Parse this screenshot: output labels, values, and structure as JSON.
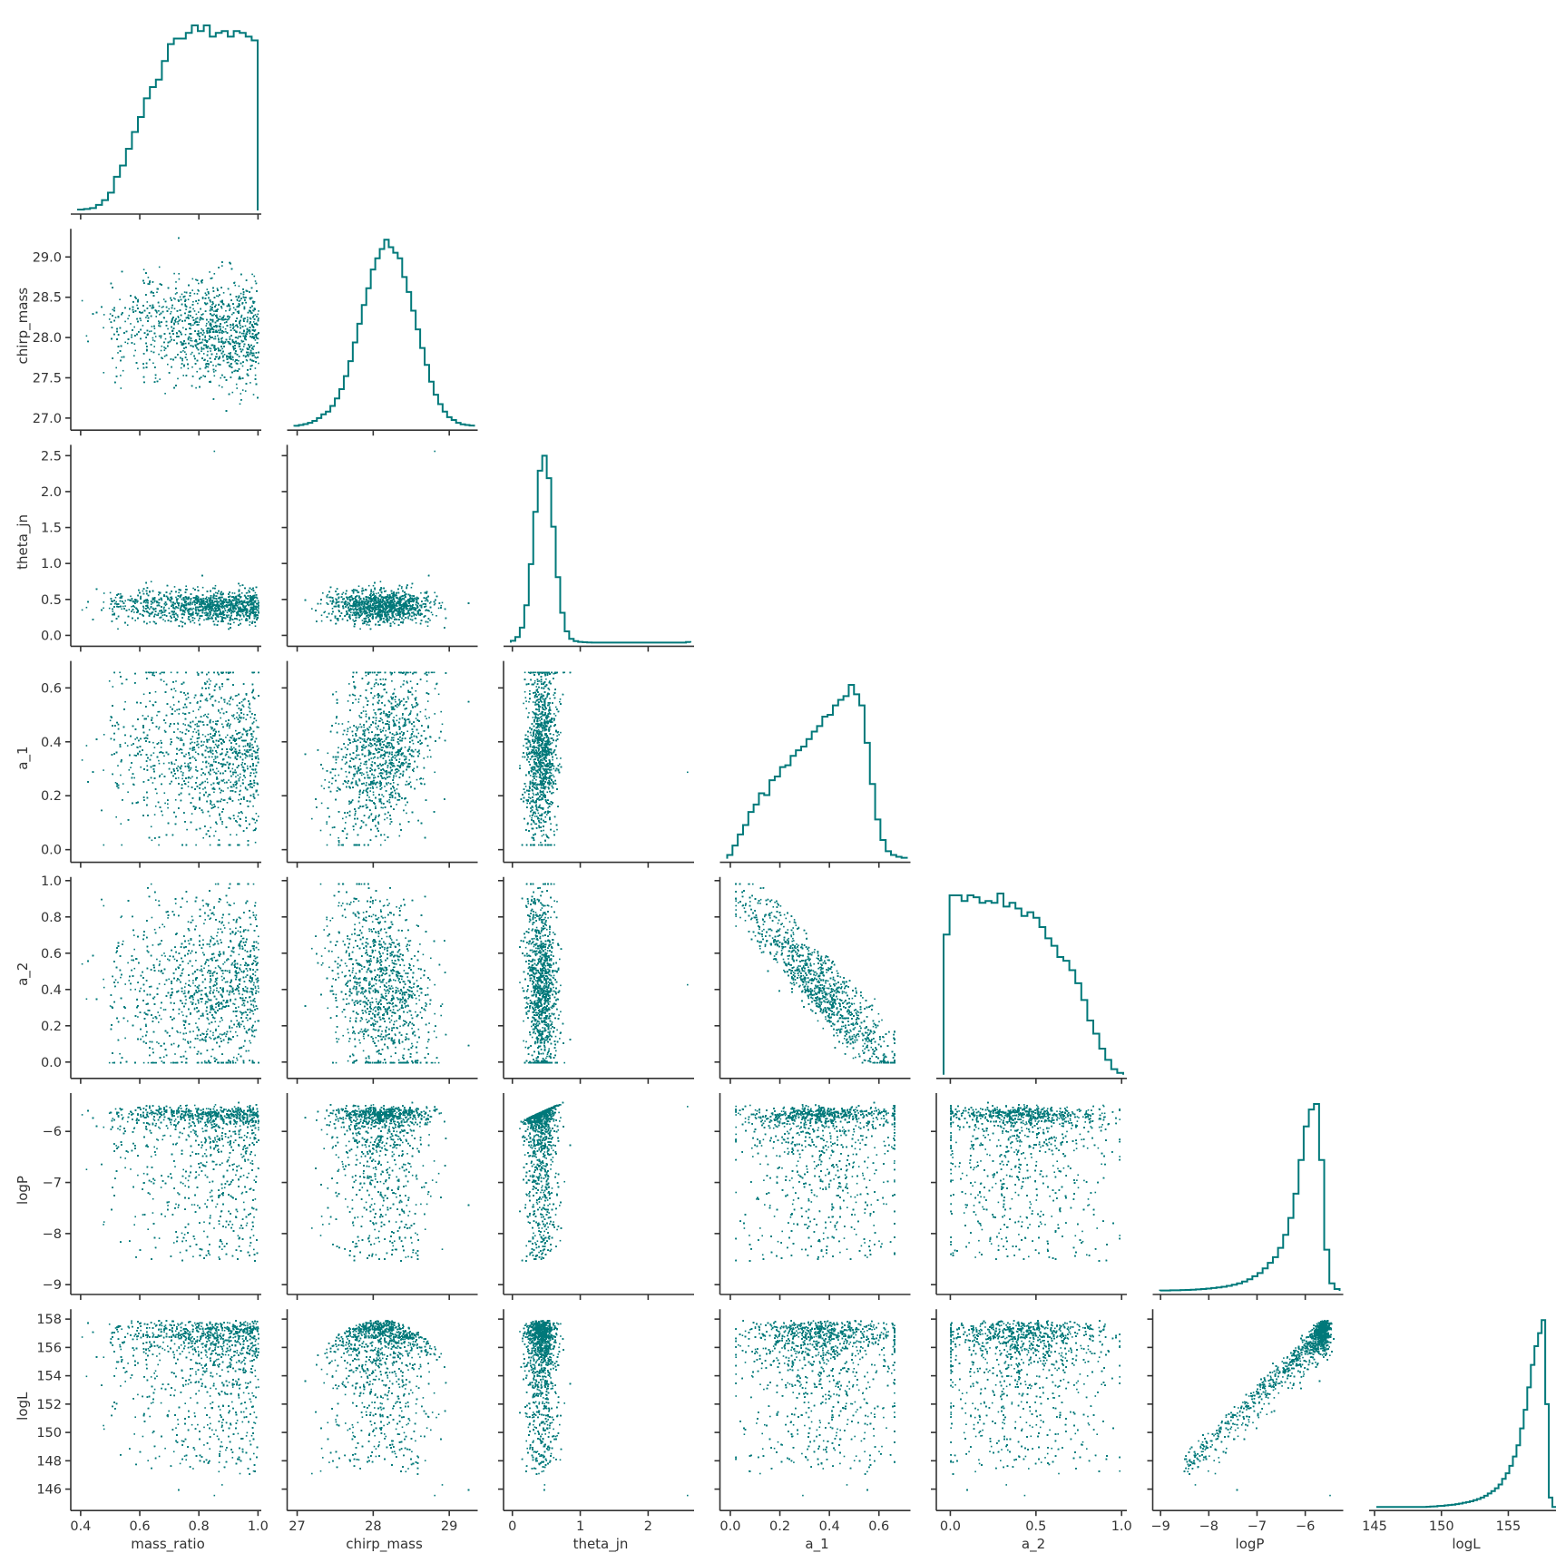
{
  "chart_data": {
    "type": "scatter",
    "title": "",
    "grid": false,
    "series_color": "#00797a",
    "variables": [
      {
        "name": "mass_ratio",
        "label": "mass_ratio",
        "range": [
          0.385,
          1.005
        ],
        "ticks": [
          0.4,
          0.6,
          0.8,
          1.0
        ],
        "tick_labels": [
          "0.4",
          "0.6",
          "0.8",
          "1.0"
        ],
        "dist": {
          "kind": "skew",
          "lo": 0.4,
          "hi": 1.0,
          "mode": 0.84,
          "sigma": 0.14
        },
        "hist": [
          0.005,
          0.008,
          0.013,
          0.03,
          0.055,
          0.095,
          0.18,
          0.24,
          0.33,
          0.42,
          0.5,
          0.6,
          0.66,
          0.7,
          0.8,
          0.89,
          0.92,
          0.92,
          0.95,
          0.99,
          0.96,
          0.99,
          0.93,
          0.95,
          0.96,
          0.93,
          0.96,
          0.95,
          0.93,
          0.91
        ]
      },
      {
        "name": "chirp_mass",
        "label": "chirp_mass",
        "range": [
          26.94,
          29.35
        ],
        "ticks": [
          27,
          28,
          29
        ],
        "tick_labels": [
          "27",
          "28",
          "29"
        ],
        "dist": {
          "kind": "normal",
          "mean": 28.08,
          "sd": 0.32
        },
        "hist": [
          0.004,
          0.008,
          0.013,
          0.02,
          0.03,
          0.045,
          0.065,
          0.08,
          0.11,
          0.15,
          0.2,
          0.27,
          0.35,
          0.45,
          0.55,
          0.65,
          0.74,
          0.84,
          0.9,
          0.95,
          1.0,
          0.96,
          0.93,
          0.9,
          0.8,
          0.72,
          0.62,
          0.52,
          0.42,
          0.33,
          0.24,
          0.17,
          0.12,
          0.08,
          0.05,
          0.035,
          0.02,
          0.012,
          0.008,
          0.005
        ]
      },
      {
        "name": "theta_jn",
        "label": "theta_jn",
        "range": [
          -0.05,
          2.65
        ],
        "ticks": [
          0,
          1,
          2
        ],
        "tick_labels": [
          "0",
          "1",
          "2"
        ],
        "dist": {
          "kind": "normal",
          "mean": 0.42,
          "sd": 0.11
        },
        "hist": [
          0.01,
          0.03,
          0.08,
          0.2,
          0.42,
          0.7,
          0.92,
          1.0,
          0.88,
          0.62,
          0.35,
          0.16,
          0.06,
          0.02,
          0.008,
          0.004,
          0.002,
          0.001,
          0,
          0,
          0,
          0,
          0,
          0,
          0,
          0,
          0,
          0,
          0,
          0,
          0,
          0,
          0,
          0,
          0,
          0,
          0,
          0,
          0,
          0.003
        ]
      },
      {
        "name": "a_1",
        "label": "a_1",
        "range": [
          -0.02,
          0.72
        ],
        "ticks": [
          0.0,
          0.2,
          0.4,
          0.6
        ],
        "tick_labels": [
          "0.0",
          "0.2",
          "0.4",
          "0.6"
        ],
        "dist": {
          "kind": "skew",
          "lo": 0.02,
          "hi": 0.6,
          "mode": 0.5,
          "sigma": 0.22
        },
        "hist": [
          0.02,
          0.07,
          0.13,
          0.18,
          0.25,
          0.29,
          0.35,
          0.34,
          0.42,
          0.44,
          0.49,
          0.5,
          0.55,
          0.58,
          0.6,
          0.64,
          0.68,
          0.71,
          0.76,
          0.77,
          0.82,
          0.85,
          0.87,
          0.93,
          0.88,
          0.82,
          0.62,
          0.4,
          0.21,
          0.1,
          0.04,
          0.02,
          0.01,
          0.005
        ]
      },
      {
        "name": "a_2",
        "label": "a_2",
        "range": [
          -0.05,
          1.02
        ],
        "ticks": [
          0.0,
          0.5,
          1.0
        ],
        "tick_labels": [
          "0.0",
          "0.5",
          "1.0"
        ],
        "dist": {
          "kind": "drop",
          "lo": 0.0,
          "hi": 0.995
        },
        "hist": [
          0.75,
          0.96,
          0.96,
          0.93,
          0.96,
          0.95,
          0.92,
          0.93,
          0.92,
          0.97,
          0.9,
          0.92,
          0.89,
          0.85,
          0.87,
          0.84,
          0.79,
          0.73,
          0.69,
          0.63,
          0.61,
          0.56,
          0.49,
          0.4,
          0.29,
          0.22,
          0.14,
          0.08,
          0.03,
          0.01
        ]
      },
      {
        "name": "logP",
        "label": "logP",
        "range": [
          -9.05,
          -5.25
        ],
        "ticks": [
          -9,
          -8,
          -7,
          -6
        ],
        "tick_labels": [
          "−9",
          "−8",
          "−7",
          "−6"
        ],
        "dist": {
          "kind": "logp",
          "base": -5.7,
          "scale": 0.3
        },
        "hist": [
          0.002,
          0.002,
          0.003,
          0.003,
          0.004,
          0.005,
          0.006,
          0.008,
          0.01,
          0.012,
          0.015,
          0.018,
          0.022,
          0.027,
          0.033,
          0.04,
          0.05,
          0.062,
          0.078,
          0.095,
          0.12,
          0.15,
          0.18,
          0.23,
          0.3,
          0.39,
          0.52,
          0.7,
          0.88,
          0.97,
          1.0,
          0.7,
          0.22,
          0.04,
          0.01
        ]
      },
      {
        "name": "logL",
        "label": "logL",
        "range": [
          145.0,
          158.7
        ],
        "ticks": [
          145,
          150,
          155
        ],
        "tick_labels": [
          "145",
          "150",
          "155"
        ],
        "dist": {
          "kind": "logl",
          "max": 158.0
        },
        "hist": [
          0,
          0,
          0,
          0,
          0,
          0,
          0,
          0,
          0,
          0,
          0,
          0,
          0,
          0,
          0.001,
          0.002,
          0.003,
          0.005,
          0.006,
          0.008,
          0.01,
          0.012,
          0.015,
          0.018,
          0.022,
          0.026,
          0.03,
          0.036,
          0.042,
          0.05,
          0.06,
          0.072,
          0.085,
          0.1,
          0.12,
          0.15,
          0.18,
          0.22,
          0.27,
          0.33,
          0.42,
          0.52,
          0.64,
          0.76,
          0.86,
          0.93,
          1.0,
          0.55,
          0.05,
          0
        ]
      }
    ],
    "grid_ranges_y": {
      "chirp_mass": {
        "range": [
          26.94,
          29.35
        ],
        "ticks": [
          27.0,
          27.5,
          28.0,
          28.5,
          29.0
        ],
        "tick_labels": [
          "27.0",
          "27.5",
          "28.0",
          "28.5",
          "29.0"
        ]
      },
      "theta_jn": {
        "range": [
          -0.05,
          2.65
        ],
        "ticks": [
          0.0,
          0.5,
          1.0,
          1.5,
          2.0,
          2.5
        ],
        "tick_labels": [
          "0.0",
          "0.5",
          "1.0",
          "1.5",
          "2.0",
          "2.5"
        ]
      },
      "a_1": {
        "range": [
          -0.02,
          0.7
        ],
        "ticks": [
          0.0,
          0.2,
          0.4,
          0.6
        ],
        "tick_labels": [
          "0.0",
          "0.2",
          "0.4",
          "0.6"
        ]
      },
      "a_2": {
        "range": [
          -0.05,
          1.02
        ],
        "ticks": [
          0.0,
          0.2,
          0.4,
          0.6,
          0.8,
          1.0
        ],
        "tick_labels": [
          "0.0",
          "0.2",
          "0.4",
          "0.6",
          "0.8",
          "1.0"
        ]
      },
      "logP": {
        "range": [
          -9.05,
          -5.25
        ],
        "ticks": [
          -9,
          -8,
          -7,
          -6
        ],
        "tick_labels": [
          "−9",
          "−8",
          "−7",
          "−6"
        ]
      },
      "logL": {
        "range": [
          145.0,
          158.7
        ],
        "ticks": [
          146,
          148,
          150,
          152,
          154,
          156,
          158
        ],
        "tick_labels": [
          "146",
          "148",
          "150",
          "152",
          "154",
          "156",
          "158"
        ]
      }
    }
  }
}
